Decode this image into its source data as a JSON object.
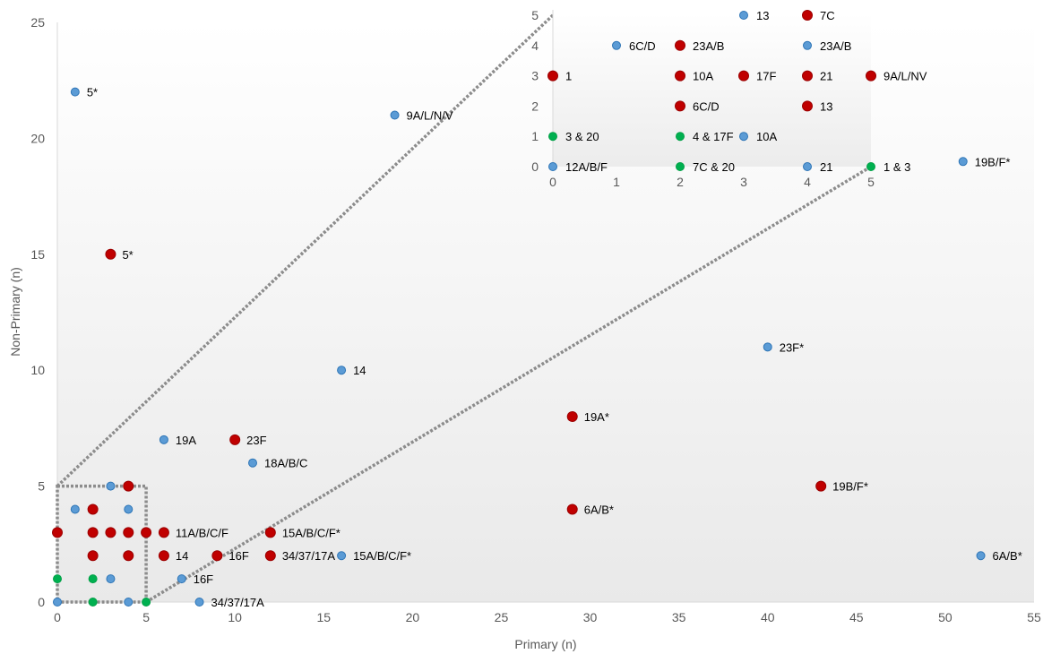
{
  "chart_data": [
    {
      "type": "scatter",
      "xlabel": "Primary (n)",
      "ylabel": "Non-Primary (n)",
      "xlim": [
        0,
        55
      ],
      "ylim": [
        0,
        25
      ],
      "xticks": [
        "0",
        "5",
        "10",
        "15",
        "20",
        "25",
        "30",
        "35",
        "40",
        "45",
        "50",
        "55"
      ],
      "yticks": [
        "0",
        "5",
        "10",
        "15",
        "20",
        "25"
      ],
      "grid": false,
      "colors": {
        "blue": "#5b9bd5",
        "red": "#c00000",
        "green": "#00b050"
      },
      "points": [
        {
          "x": 1,
          "y": 22,
          "color": "blue",
          "label": "5*"
        },
        {
          "x": 19,
          "y": 21,
          "color": "blue",
          "label": "9A/L/N/V"
        },
        {
          "x": 3,
          "y": 15,
          "color": "red",
          "label": "5*"
        },
        {
          "x": 16,
          "y": 10,
          "color": "blue",
          "label": "14"
        },
        {
          "x": 40,
          "y": 11,
          "color": "blue",
          "label": "23F*"
        },
        {
          "x": 51,
          "y": 19,
          "color": "blue",
          "label": "19B/F*"
        },
        {
          "x": 29,
          "y": 8,
          "color": "red",
          "label": "19A*"
        },
        {
          "x": 6,
          "y": 7,
          "color": "blue",
          "label": "19A"
        },
        {
          "x": 10,
          "y": 7,
          "color": "red",
          "label": "23F"
        },
        {
          "x": 11,
          "y": 6,
          "color": "blue",
          "label": "18A/B/C"
        },
        {
          "x": 43,
          "y": 5,
          "color": "red",
          "label": "19B/F*"
        },
        {
          "x": 29,
          "y": 4,
          "color": "red",
          "label": "6A/B*"
        },
        {
          "x": 52,
          "y": 2,
          "color": "blue",
          "label": "6A/B*"
        },
        {
          "x": 6,
          "y": 3,
          "color": "red",
          "label": "11A/B/C/F"
        },
        {
          "x": 12,
          "y": 3,
          "color": "red",
          "label": "15A/B/C/F*"
        },
        {
          "x": 16,
          "y": 2,
          "color": "blue",
          "label": "15A/B/C/F*"
        },
        {
          "x": 6,
          "y": 2,
          "color": "red",
          "label": "14"
        },
        {
          "x": 9,
          "y": 2,
          "color": "red",
          "label": "16F"
        },
        {
          "x": 12,
          "y": 2,
          "color": "red",
          "label": "34/37/17A"
        },
        {
          "x": 7,
          "y": 1,
          "color": "blue",
          "label": "16F"
        },
        {
          "x": 8,
          "y": 0,
          "color": "blue",
          "label": "34/37/17A"
        },
        {
          "x": 0,
          "y": 3,
          "color": "red",
          "label": ""
        },
        {
          "x": 1,
          "y": 4,
          "color": "blue",
          "label": ""
        },
        {
          "x": 2,
          "y": 4,
          "color": "red",
          "label": ""
        },
        {
          "x": 2,
          "y": 3,
          "color": "red",
          "label": ""
        },
        {
          "x": 2,
          "y": 2,
          "color": "red",
          "label": ""
        },
        {
          "x": 3,
          "y": 5,
          "color": "blue",
          "label": ""
        },
        {
          "x": 3,
          "y": 3,
          "color": "red",
          "label": ""
        },
        {
          "x": 3,
          "y": 1,
          "color": "blue",
          "label": ""
        },
        {
          "x": 4,
          "y": 5,
          "color": "red",
          "label": ""
        },
        {
          "x": 4,
          "y": 4,
          "color": "blue",
          "label": ""
        },
        {
          "x": 4,
          "y": 3,
          "color": "red",
          "label": ""
        },
        {
          "x": 4,
          "y": 2,
          "color": "red",
          "label": ""
        },
        {
          "x": 5,
          "y": 3,
          "color": "red",
          "label": ""
        },
        {
          "x": 0,
          "y": 1,
          "color": "green",
          "label": ""
        },
        {
          "x": 2,
          "y": 1,
          "color": "green",
          "label": ""
        },
        {
          "x": 2,
          "y": 0,
          "color": "green",
          "label": ""
        },
        {
          "x": 5,
          "y": 0,
          "color": "green",
          "label": ""
        },
        {
          "x": 0,
          "y": 0,
          "color": "blue",
          "label": ""
        },
        {
          "x": 4,
          "y": 0,
          "color": "blue",
          "label": ""
        }
      ]
    },
    {
      "type": "scatter",
      "subtitle": "inset",
      "xlim": [
        0,
        5
      ],
      "ylim": [
        0,
        5
      ],
      "xticks": [
        "0",
        "1",
        "2",
        "3",
        "4",
        "5"
      ],
      "yticks": [
        "0",
        "1",
        "2",
        "3",
        "4",
        "5"
      ],
      "points": [
        {
          "x": 3,
          "y": 5,
          "color": "blue",
          "label": "13"
        },
        {
          "x": 4,
          "y": 5,
          "color": "red",
          "label": "7C"
        },
        {
          "x": 1,
          "y": 4,
          "color": "blue",
          "label": "6C/D"
        },
        {
          "x": 2,
          "y": 4,
          "color": "red",
          "label": "23A/B"
        },
        {
          "x": 4,
          "y": 4,
          "color": "blue",
          "label": "23A/B"
        },
        {
          "x": 0,
          "y": 3,
          "color": "red",
          "label": "1"
        },
        {
          "x": 2,
          "y": 3,
          "color": "red",
          "label": "10A"
        },
        {
          "x": 3,
          "y": 3,
          "color": "red",
          "label": "17F"
        },
        {
          "x": 4,
          "y": 3,
          "color": "red",
          "label": "21"
        },
        {
          "x": 5,
          "y": 3,
          "color": "red",
          "label": "9A/L/NV"
        },
        {
          "x": 2,
          "y": 2,
          "color": "red",
          "label": "6C/D"
        },
        {
          "x": 4,
          "y": 2,
          "color": "red",
          "label": "13"
        },
        {
          "x": 0,
          "y": 1,
          "color": "green",
          "label": "3 & 20",
          "label_color": "#ff0000"
        },
        {
          "x": 2,
          "y": 1,
          "color": "green",
          "label": "4 & 17F",
          "label_color": "#1f3864"
        },
        {
          "x": 3,
          "y": 1,
          "color": "blue",
          "label": "10A"
        },
        {
          "x": 0,
          "y": 0,
          "color": "blue",
          "label": "12A/B/F"
        },
        {
          "x": 2,
          "y": 0,
          "color": "green",
          "label": "7C & 20",
          "label_color": "#1f3864"
        },
        {
          "x": 4,
          "y": 0,
          "color": "blue",
          "label": "21"
        },
        {
          "x": 5,
          "y": 0,
          "color": "green",
          "label": "1 & 3",
          "label_color": "#1f3864"
        }
      ]
    }
  ]
}
